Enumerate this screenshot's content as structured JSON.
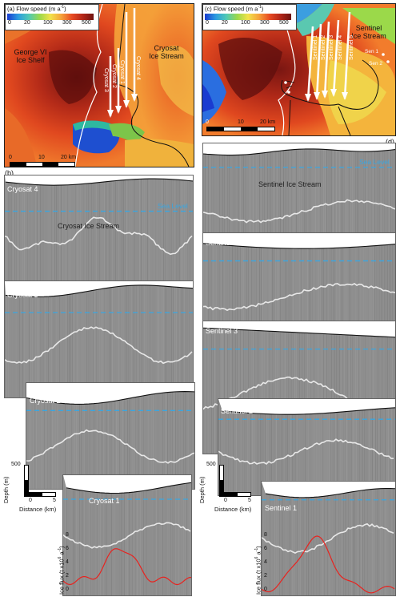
{
  "map_a": {
    "panel": "(a) Flow speed (m a",
    "unit_sup": "-1",
    "unit_close": ")",
    "ticks": [
      "0",
      "20",
      "100",
      "300",
      "500"
    ],
    "region_left_1": "George VI",
    "region_left_2": "Ice Shelf",
    "region_right_1": "Cryosat",
    "region_right_2": "Ice Stream",
    "lines": [
      "Cryosat 1",
      "Cryosat 2",
      "Cryosat 3",
      "Cryosat 4"
    ],
    "scale": [
      "0",
      "10",
      "20 km"
    ]
  },
  "map_c": {
    "panel": "(c) Flow speed (m a",
    "unit_sup": "-1",
    "unit_close": ")",
    "ticks": [
      "0",
      "20",
      "100",
      "300",
      "500"
    ],
    "region_right_1": "Sentinel",
    "region_right_2": "Ice Stream",
    "lines": [
      "Sentinel 1",
      "Sentinel 2",
      "Sentinel 3",
      "Sentinel 4",
      "Sentinel 5"
    ],
    "extra": [
      "Sen 1",
      "Sen 2"
    ],
    "scale": [
      "0",
      "10",
      "20 km"
    ]
  },
  "panel_b": "(b)",
  "panel_d": "(d)",
  "sea_level": "Sea Level",
  "left_profiles": {
    "cryosat4": "Cryosat 4",
    "stream_label": "Cryosat Ice Stream",
    "cryosat3": "Cryosat 3",
    "cryosat2": "Cryosat 2",
    "cryosat1": "Cryosat 1"
  },
  "right_profiles": {
    "sentinel5": "Sentinel 5",
    "stream_label": "Sentinel Ice Stream",
    "sentinel4": "Sentinel 4",
    "sentinel3": "Sentinel 3",
    "sentinel2": "Sentinel 2",
    "sentinel1": "Sentinel 1"
  },
  "scalebar": {
    "depth_value": "500",
    "depth_label": "Depth (m)",
    "distance_label": "Distance (km)",
    "distance_ticks": [
      "0",
      "5"
    ]
  },
  "flux_axis": {
    "label": "Ice flux (t x10",
    "label_sup": "6",
    "label_close": " a",
    "label_sup2": "-1",
    "label_end": ")",
    "ticks": [
      "0",
      "2",
      "4",
      "6",
      "8"
    ]
  },
  "colors": {
    "flux_line": "#e8231f",
    "sea_level": "#3aa6e0",
    "radar_bg": "#8f8f8f"
  }
}
